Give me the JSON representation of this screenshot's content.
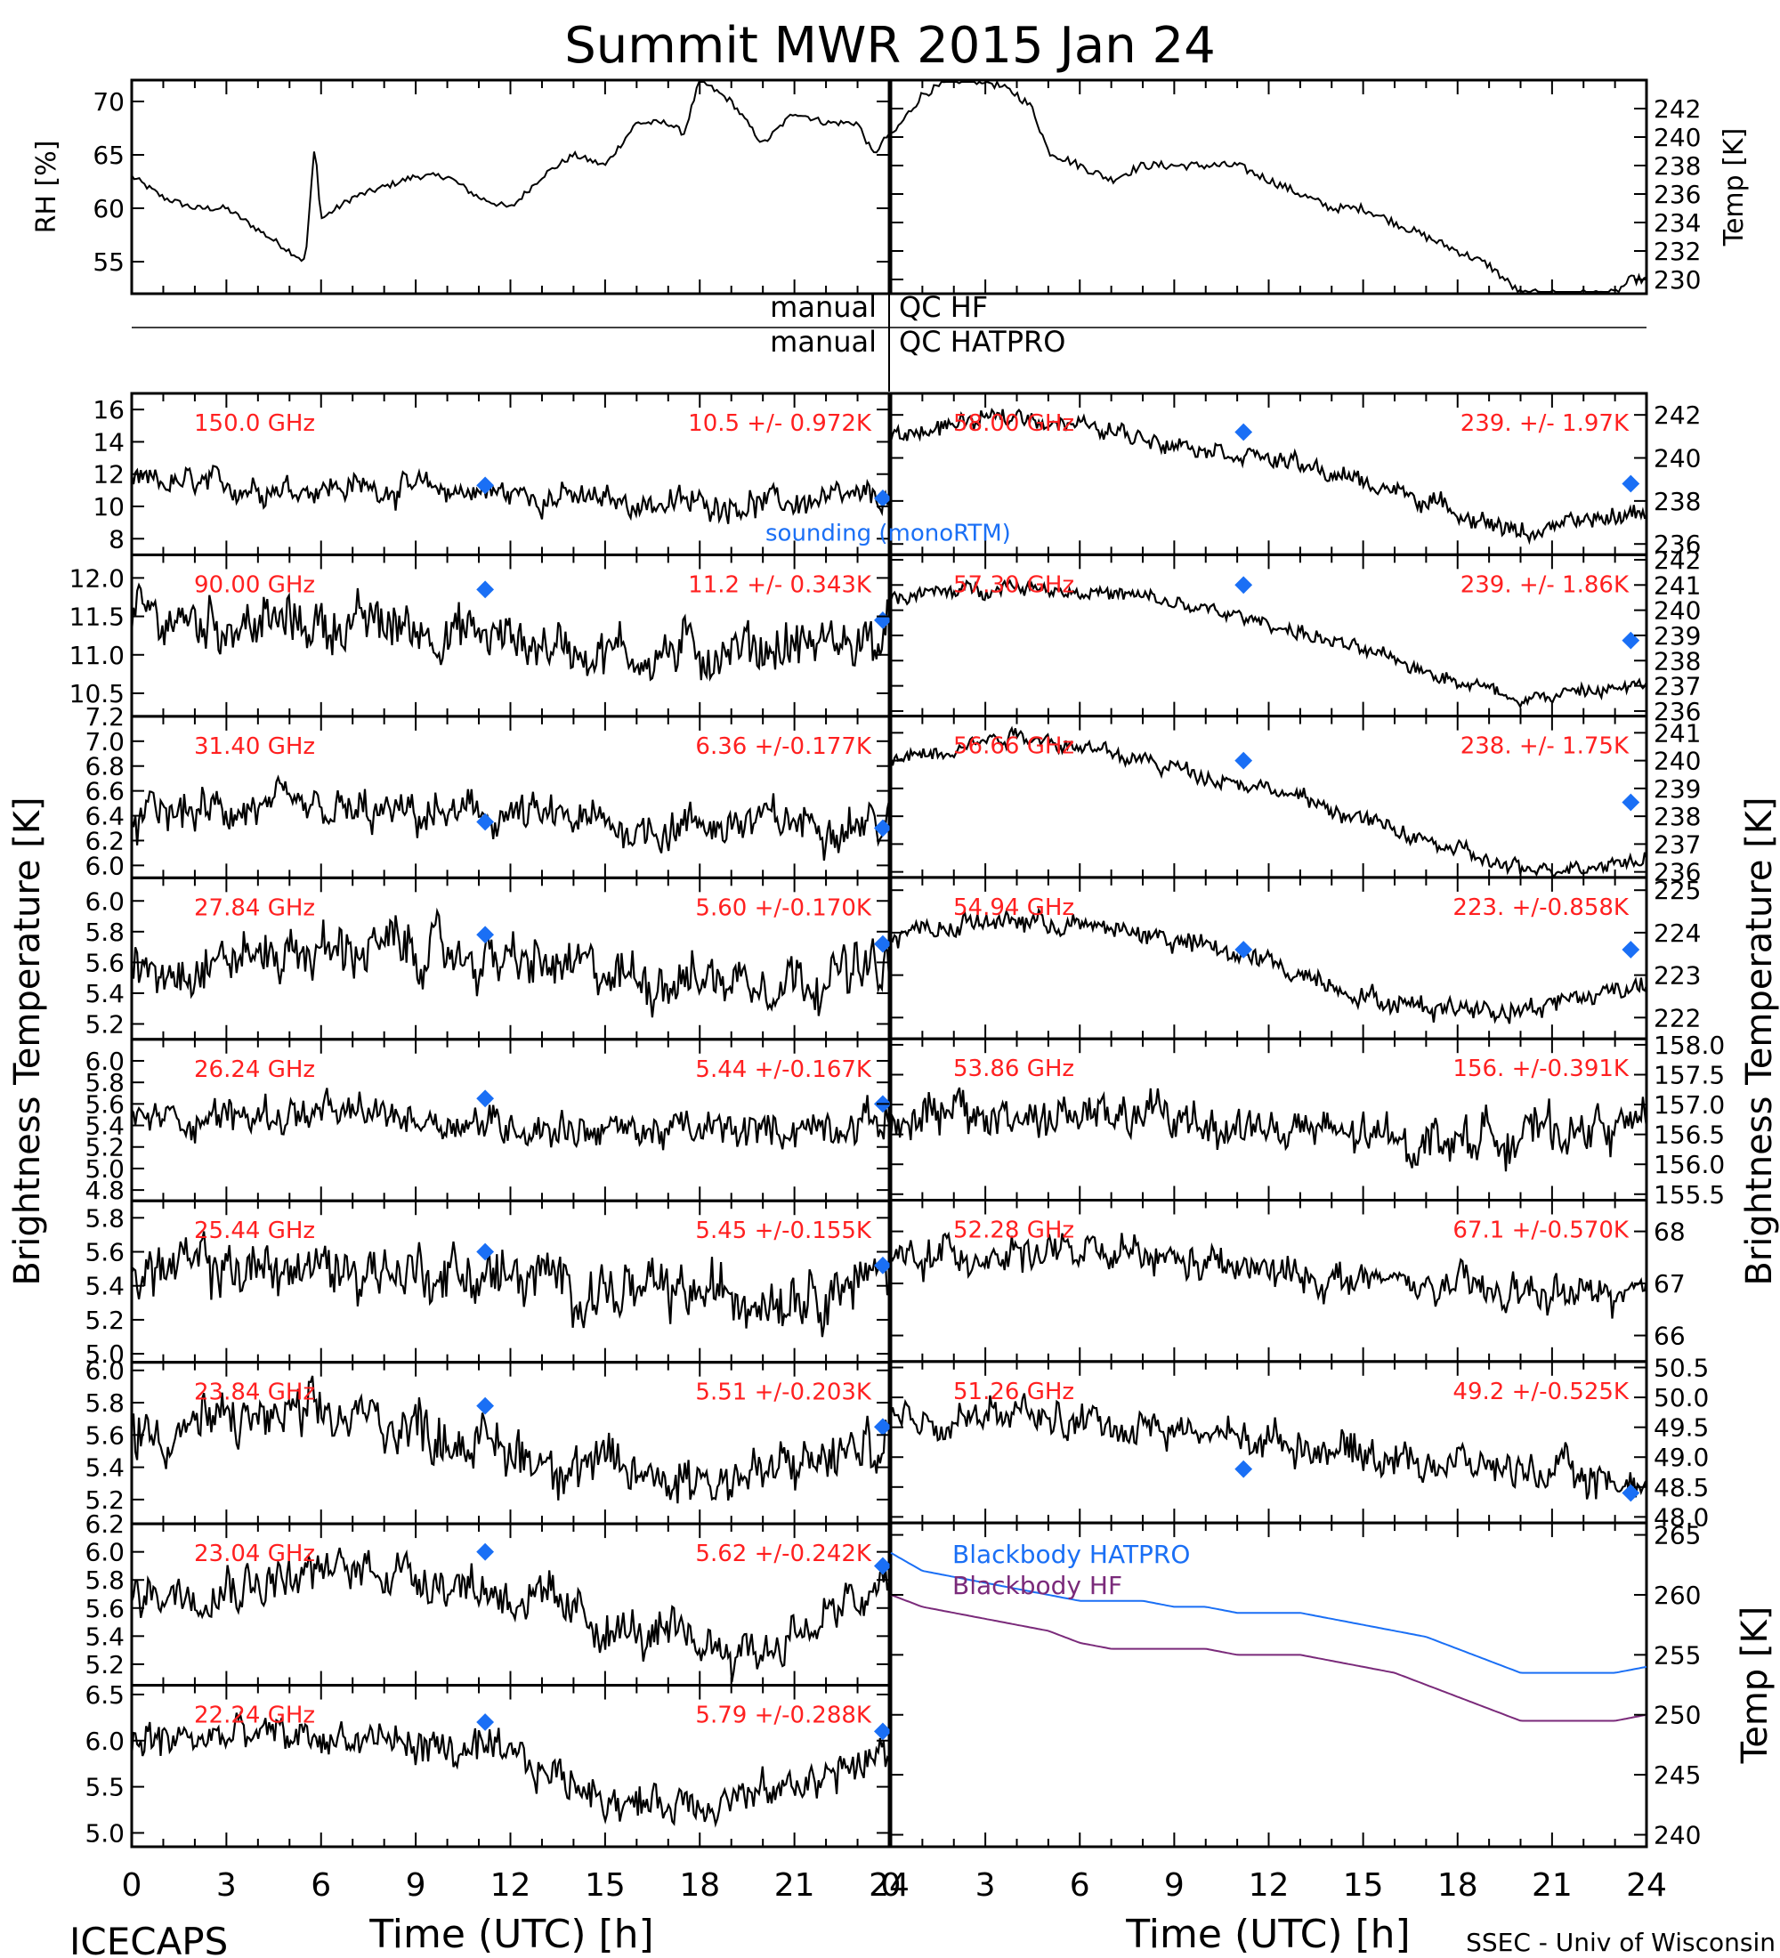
{
  "title": "Summit MWR 2015 Jan 24",
  "footer": {
    "left": "ICECAPS",
    "right": "SSEC - Univ of Wisconsin"
  },
  "x_axis": {
    "label": "Time (UTC) [h]",
    "ticks": [
      "0",
      "3",
      "6",
      "9",
      "12",
      "15",
      "18",
      "21",
      "24"
    ],
    "range": [
      0,
      24
    ]
  },
  "left_label": "Brightness Temperature [K]",
  "right_label": "Brightness Temperature [K]",
  "qc": {
    "manual_1": "manual",
    "qc_1": "QC HF",
    "manual_2": "manual",
    "qc_2": "QC HATPRO"
  },
  "legend": {
    "sounding": "sounding (monoRTM)"
  },
  "colors": {
    "data": "#000000",
    "sounding": "#1a6ff5",
    "annotation": "#ff2020",
    "bb_hatpro": "#1a6ff5",
    "bb_hf": "#7a2a7a"
  },
  "chart_data": [
    {
      "type": "line",
      "name": "rh",
      "ylabel": "RH [%]",
      "ticks": [
        "55",
        "60",
        "65",
        "70"
      ],
      "ylim": [
        52,
        72
      ],
      "side": "left",
      "x": [
        0,
        1,
        2,
        3,
        4,
        5,
        5.5,
        5.8,
        6,
        7,
        8,
        9,
        10,
        11,
        12,
        13,
        14,
        15,
        16,
        17,
        17.5,
        18,
        19,
        20,
        21,
        22,
        23,
        23.5,
        24
      ],
      "values": [
        63,
        61,
        60,
        60,
        58,
        56,
        55,
        66,
        59,
        61,
        62,
        63,
        63,
        61,
        60,
        63,
        65,
        64,
        68,
        68,
        67,
        72,
        70,
        66,
        69,
        68,
        68,
        65,
        67
      ]
    },
    {
      "type": "line",
      "name": "temp",
      "ylabel": "Temp [K]",
      "ticks": [
        "230",
        "232",
        "234",
        "236",
        "238",
        "240",
        "242"
      ],
      "ylim": [
        229,
        244
      ],
      "side": "right",
      "x": [
        0,
        1,
        2,
        3,
        4,
        4.5,
        5,
        6,
        7,
        8,
        9,
        10,
        11,
        12,
        13,
        14,
        15,
        16,
        17,
        18,
        19,
        20,
        21,
        22,
        23,
        23.5,
        24
      ],
      "values": [
        240,
        243,
        244,
        244,
        243,
        242,
        239,
        238,
        237,
        238,
        238,
        238,
        238,
        237,
        236,
        235,
        235,
        234,
        233,
        232,
        231,
        229,
        229,
        229,
        229,
        230,
        230
      ]
    },
    {
      "type": "scatter",
      "freq": "150.0 GHz",
      "stats": "10.5 +/- 0.972K",
      "ticks": [
        "8",
        "10",
        "12",
        "14",
        "16"
      ],
      "ylim": [
        7,
        17
      ],
      "mean": [
        11.5,
        11.2,
        11.2,
        10.8,
        10.2,
        10.2,
        10.5
      ],
      "amp": 1.0,
      "sounding": [
        [
          11.2,
          11.3
        ],
        [
          23.8,
          10.5
        ]
      ]
    },
    {
      "type": "scatter",
      "freq": "90.00 GHz",
      "stats": "11.2 +/- 0.343K",
      "ticks": [
        "10.5",
        "11.0",
        "11.5",
        "12.0"
      ],
      "ylim": [
        10.2,
        12.3
      ],
      "mean": [
        11.5,
        11.4,
        11.4,
        11.2,
        11.0,
        11.1,
        11.2
      ],
      "amp": 0.4,
      "sounding": [
        [
          11.2,
          11.85
        ],
        [
          23.8,
          11.45
        ]
      ]
    },
    {
      "type": "scatter",
      "freq": "31.40 GHz",
      "stats": "6.36 +/-0.177K",
      "ticks": [
        "6.0",
        "6.2",
        "6.4",
        "6.6",
        "6.8",
        "7.0",
        "7.2"
      ],
      "ylim": [
        5.9,
        7.2
      ],
      "mean": [
        6.4,
        6.45,
        6.4,
        6.4,
        6.3,
        6.35,
        6.35
      ],
      "amp": 0.2,
      "sounding": [
        [
          11.2,
          6.35
        ],
        [
          23.8,
          6.3
        ]
      ]
    },
    {
      "type": "scatter",
      "freq": "27.84 GHz",
      "stats": "5.60 +/-0.170K",
      "ticks": [
        "5.2",
        "5.4",
        "5.6",
        "5.8",
        "6.0"
      ],
      "ylim": [
        5.1,
        6.15
      ],
      "mean": [
        5.55,
        5.65,
        5.7,
        5.6,
        5.5,
        5.5,
        5.55
      ],
      "amp": 0.2,
      "sounding": [
        [
          11.2,
          5.78
        ],
        [
          23.8,
          5.72
        ]
      ]
    },
    {
      "type": "scatter",
      "freq": "26.24 GHz",
      "stats": "5.44 +/-0.167K",
      "ticks": [
        "4.8",
        "5.0",
        "5.2",
        "5.4",
        "5.6",
        "5.8",
        "6.0"
      ],
      "ylim": [
        4.7,
        6.2
      ],
      "mean": [
        5.45,
        5.5,
        5.5,
        5.4,
        5.35,
        5.35,
        5.45
      ],
      "amp": 0.2,
      "sounding": [
        [
          11.2,
          5.65
        ],
        [
          23.8,
          5.6
        ]
      ]
    },
    {
      "type": "scatter",
      "freq": "25.44 GHz",
      "stats": "5.45 +/-0.155K",
      "ticks": [
        "5.0",
        "5.2",
        "5.4",
        "5.6",
        "5.8"
      ],
      "ylim": [
        4.95,
        5.9
      ],
      "mean": [
        5.5,
        5.5,
        5.5,
        5.45,
        5.35,
        5.35,
        5.45
      ],
      "amp": 0.2,
      "sounding": [
        [
          11.2,
          5.6
        ],
        [
          23.8,
          5.52
        ]
      ]
    },
    {
      "type": "scatter",
      "freq": "23.84 GHz",
      "stats": "5.51 +/-0.203K",
      "ticks": [
        "5.2",
        "5.4",
        "5.6",
        "5.8",
        "6.0"
      ],
      "ylim": [
        5.05,
        6.05
      ],
      "mean": [
        5.6,
        5.7,
        5.7,
        5.5,
        5.35,
        5.35,
        5.55
      ],
      "amp": 0.2,
      "sounding": [
        [
          11.2,
          5.78
        ],
        [
          23.8,
          5.65
        ]
      ]
    },
    {
      "type": "scatter",
      "freq": "23.04 GHz",
      "stats": "5.62 +/-0.242K",
      "ticks": [
        "5.2",
        "5.4",
        "5.6",
        "5.8",
        "6.0",
        "6.2"
      ],
      "ylim": [
        5.05,
        6.2
      ],
      "mean": [
        5.7,
        5.8,
        5.9,
        5.7,
        5.4,
        5.3,
        5.75
      ],
      "amp": 0.2,
      "sounding": [
        [
          11.2,
          6.0
        ],
        [
          23.8,
          5.9
        ]
      ]
    },
    {
      "type": "scatter",
      "freq": "22.24 GHz",
      "stats": "5.79 +/-0.288K",
      "ticks": [
        "5.0",
        "5.5",
        "6.0",
        "6.5"
      ],
      "ylim": [
        4.85,
        6.6
      ],
      "mean": [
        6.0,
        6.05,
        6.0,
        5.8,
        5.3,
        5.4,
        5.85
      ],
      "amp": 0.25,
      "sounding": [
        [
          11.2,
          6.2
        ],
        [
          23.8,
          6.1
        ]
      ]
    },
    {
      "type": "scatter",
      "freq": "58.00 GHz",
      "stats": "239. +/- 1.97K",
      "ticks": [
        "236",
        "238",
        "240",
        "242"
      ],
      "ylim": [
        235.5,
        243
      ],
      "mean": [
        241,
        242,
        241,
        240,
        238.5,
        236.5,
        237.5
      ],
      "amp": 0.5,
      "sounding": [
        [
          11.2,
          241.2
        ],
        [
          23.5,
          238.8
        ]
      ]
    },
    {
      "type": "scatter",
      "freq": "57.30 GHz",
      "stats": "239. +/- 1.86K",
      "ticks": [
        "236",
        "237",
        "238",
        "239",
        "240",
        "241",
        "242"
      ],
      "ylim": [
        235.8,
        242.2
      ],
      "mean": [
        240.5,
        241,
        240.5,
        239.5,
        238,
        236.5,
        237
      ],
      "amp": 0.35,
      "sounding": [
        [
          11.2,
          241
        ],
        [
          23.5,
          238.8
        ]
      ]
    },
    {
      "type": "scatter",
      "freq": "56.66 GHz",
      "stats": "238. +/- 1.75K",
      "ticks": [
        "236",
        "237",
        "238",
        "239",
        "240",
        "241"
      ],
      "ylim": [
        235.8,
        241.6
      ],
      "mean": [
        240,
        241,
        240,
        239,
        237.5,
        236,
        236.5
      ],
      "amp": 0.35,
      "sounding": [
        [
          11.2,
          240
        ],
        [
          23.5,
          238.5
        ]
      ]
    },
    {
      "type": "scatter",
      "freq": "54.94 GHz",
      "stats": "223. +/-0.858K",
      "ticks": [
        "222",
        "223",
        "224",
        "225"
      ],
      "ylim": [
        221.5,
        225.3
      ],
      "mean": [
        224,
        224.3,
        224,
        223.3,
        222.3,
        222.2,
        222.8
      ],
      "amp": 0.3,
      "sounding": [
        [
          11.2,
          223.6
        ],
        [
          23.5,
          223.6
        ]
      ]
    },
    {
      "type": "scatter",
      "freq": "53.86 GHz",
      "stats": "156. +/-0.391K",
      "ticks": [
        "155.5",
        "156.0",
        "156.5",
        "157.0",
        "157.5",
        "158.0"
      ],
      "ylim": [
        155.4,
        158.1
      ],
      "mean": [
        156.8,
        156.8,
        156.8,
        156.6,
        156.4,
        156.5,
        156.7
      ],
      "amp": 0.45,
      "sounding": []
    },
    {
      "type": "scatter",
      "freq": "52.28 GHz",
      "stats": "67.1 +/-0.570K",
      "ticks": [
        "66",
        "67",
        "68"
      ],
      "ylim": [
        65.5,
        68.6
      ],
      "mean": [
        67.5,
        67.6,
        67.5,
        67.2,
        67.0,
        66.8,
        66.8
      ],
      "amp": 0.4,
      "sounding": []
    },
    {
      "type": "scatter",
      "freq": "51.26 GHz",
      "stats": "49.2 +/-0.525K",
      "ticks": [
        "48.0",
        "48.5",
        "49.0",
        "49.5",
        "50.0",
        "50.5"
      ],
      "ylim": [
        47.9,
        50.6
      ],
      "mean": [
        49.6,
        49.7,
        49.5,
        49.3,
        49.0,
        48.8,
        48.5
      ],
      "amp": 0.35,
      "sounding": [
        [
          11.2,
          48.8
        ],
        [
          23.5,
          48.4
        ]
      ]
    },
    {
      "type": "line",
      "name": "blackbody",
      "ylabel": "Temp [K]",
      "ticks": [
        "240",
        "245",
        "250",
        "255",
        "260",
        "265"
      ],
      "ylim": [
        239,
        266
      ],
      "series": [
        {
          "name": "Blackbody HATPRO",
          "x": [
            0,
            1,
            2,
            3,
            4,
            5,
            6,
            7,
            8,
            9,
            10,
            11,
            12,
            13,
            14,
            15,
            16,
            17,
            18,
            19,
            20,
            21,
            22,
            23,
            24
          ],
          "values": [
            263.5,
            262,
            261.5,
            261,
            260.5,
            260,
            259.5,
            259.5,
            259.5,
            259,
            259,
            258.5,
            258.5,
            258.5,
            258,
            257.5,
            257,
            256.5,
            255.5,
            254.5,
            253.5,
            253.5,
            253.5,
            253.5,
            254
          ]
        },
        {
          "name": "Blackbody HF",
          "x": [
            0,
            1,
            2,
            3,
            4,
            5,
            6,
            7,
            8,
            9,
            10,
            11,
            12,
            13,
            14,
            15,
            16,
            17,
            18,
            19,
            20,
            21,
            22,
            23,
            24
          ],
          "values": [
            260,
            259,
            258.5,
            258,
            257.5,
            257,
            256,
            255.5,
            255.5,
            255.5,
            255.5,
            255,
            255,
            255,
            254.5,
            254,
            253.5,
            252.5,
            251.5,
            250.5,
            249.5,
            249.5,
            249.5,
            249.5,
            250
          ]
        }
      ]
    }
  ]
}
